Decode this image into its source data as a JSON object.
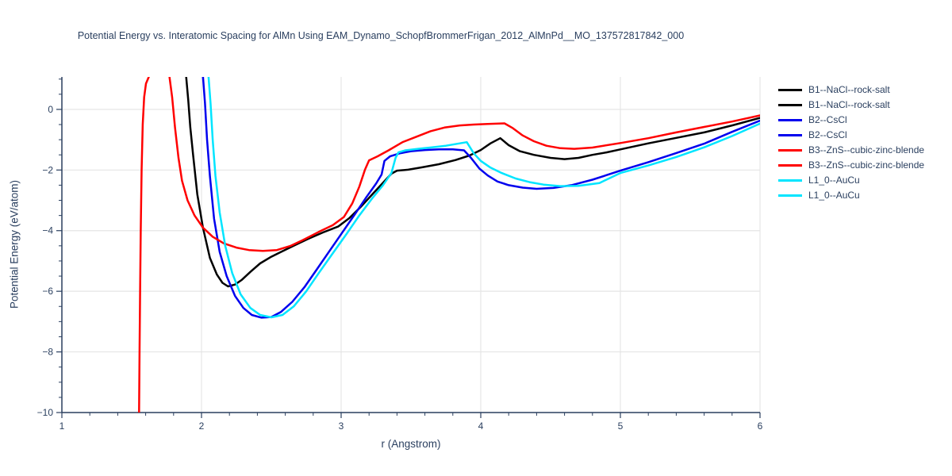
{
  "title": "Potential Energy vs. Interatomic Spacing for AlMn Using EAM_Dynamo_SchopfBrommerFrigan_2012_AlMnPd__MO_137572817842_000",
  "colors": {
    "text": "#2a3f5f",
    "grid": "#e5e5e5",
    "axis_line": "#2a3f5f",
    "background": "#ffffff",
    "series_black": "#000000",
    "series_blue": "#0000ee",
    "series_red": "#ff0000",
    "series_cyan": "#00e5ff"
  },
  "chart_data": {
    "type": "line",
    "title": "Potential Energy vs. Interatomic Spacing for AlMn Using EAM_Dynamo_SchopfBrommerFrigan_2012_AlMnPd__MO_137572817842_000",
    "xlabel": "r (Angstrom)",
    "ylabel": "Potential Energy (eV/atom)",
    "xlim": [
      1,
      6
    ],
    "ylim": [
      -10,
      1.07
    ],
    "grid": true,
    "legend_position": "right",
    "x_ticks": [
      1,
      2,
      3,
      4,
      5,
      6
    ],
    "x_tick_labels": [
      "1",
      "2",
      "3",
      "4",
      "5",
      "6"
    ],
    "y_ticks": [
      0,
      -2,
      -4,
      -6,
      -8,
      -10
    ],
    "y_tick_labels": [
      "0",
      "−2",
      "−4",
      "−6",
      "−8",
      "−10"
    ],
    "x_minor_step": 0.2,
    "y_minor_step": 0.5,
    "legend_entries": [
      {
        "label": "B1--NaCl--rock-salt",
        "color": "#000000",
        "series": 0
      },
      {
        "label": "B1--NaCl--rock-salt",
        "color": "#000000",
        "series": 0
      },
      {
        "label": "B2--CsCl",
        "color": "#0000ee",
        "series": 1
      },
      {
        "label": "B2--CsCl",
        "color": "#0000ee",
        "series": 1
      },
      {
        "label": "B3--ZnS--cubic-zinc-blende",
        "color": "#ff0000",
        "series": 2
      },
      {
        "label": "B3--ZnS--cubic-zinc-blende",
        "color": "#ff0000",
        "series": 2
      },
      {
        "label": "L1_0--AuCu",
        "color": "#00e5ff",
        "series": 3
      },
      {
        "label": "L1_0--AuCu",
        "color": "#00e5ff",
        "series": 3
      }
    ],
    "series": [
      {
        "name": "B1--NaCl--rock-salt",
        "color": "#000000",
        "segments": [
          [
            [
              1.89,
              1.1
            ],
            [
              1.905,
              0.3
            ],
            [
              1.92,
              -0.6
            ],
            [
              1.94,
              -1.5
            ],
            [
              1.97,
              -2.8
            ],
            [
              2.01,
              -3.9
            ],
            [
              2.06,
              -4.9
            ],
            [
              2.11,
              -5.45
            ],
            [
              2.15,
              -5.72
            ],
            [
              2.19,
              -5.84
            ],
            [
              2.24,
              -5.78
            ],
            [
              2.29,
              -5.62
            ],
            [
              2.35,
              -5.36
            ],
            [
              2.42,
              -5.08
            ],
            [
              2.5,
              -4.86
            ],
            [
              2.57,
              -4.7
            ],
            [
              2.66,
              -4.5
            ],
            [
              2.76,
              -4.28
            ],
            [
              2.87,
              -4.06
            ],
            [
              2.98,
              -3.86
            ],
            [
              3.06,
              -3.58
            ],
            [
              3.14,
              -3.22
            ],
            [
              3.22,
              -2.82
            ],
            [
              3.3,
              -2.42
            ],
            [
              3.36,
              -2.12
            ],
            [
              3.4,
              -2.02
            ],
            [
              3.48,
              -1.99
            ],
            [
              3.58,
              -1.91
            ],
            [
              3.7,
              -1.81
            ],
            [
              3.82,
              -1.67
            ],
            [
              3.92,
              -1.52
            ],
            [
              4.0,
              -1.34
            ],
            [
              4.07,
              -1.12
            ],
            [
              4.14,
              -0.95
            ],
            [
              4.2,
              -1.18
            ],
            [
              4.28,
              -1.38
            ],
            [
              4.38,
              -1.5
            ],
            [
              4.5,
              -1.6
            ],
            [
              4.6,
              -1.64
            ],
            [
              4.7,
              -1.6
            ],
            [
              4.8,
              -1.5
            ],
            [
              4.9,
              -1.42
            ],
            [
              5.0,
              -1.32
            ],
            [
              5.2,
              -1.12
            ],
            [
              5.4,
              -0.94
            ],
            [
              5.6,
              -0.76
            ],
            [
              5.8,
              -0.53
            ],
            [
              6.0,
              -0.28
            ]
          ]
        ]
      },
      {
        "name": "B2--CsCl",
        "color": "#0000ee",
        "segments": [
          [
            [
              2.01,
              1.1
            ],
            [
              2.025,
              0.2
            ],
            [
              2.04,
              -1.0
            ],
            [
              2.06,
              -2.2
            ],
            [
              2.09,
              -3.6
            ],
            [
              2.13,
              -4.7
            ],
            [
              2.18,
              -5.5
            ],
            [
              2.24,
              -6.15
            ],
            [
              2.3,
              -6.55
            ],
            [
              2.36,
              -6.78
            ],
            [
              2.43,
              -6.87
            ],
            [
              2.5,
              -6.85
            ],
            [
              2.57,
              -6.68
            ],
            [
              2.65,
              -6.35
            ],
            [
              2.74,
              -5.85
            ],
            [
              2.83,
              -5.25
            ],
            [
              2.92,
              -4.65
            ],
            [
              3.01,
              -4.05
            ],
            [
              3.1,
              -3.45
            ],
            [
              3.18,
              -2.9
            ],
            [
              3.25,
              -2.45
            ],
            [
              3.29,
              -2.15
            ],
            [
              3.31,
              -1.7
            ],
            [
              3.35,
              -1.55
            ],
            [
              3.42,
              -1.45
            ],
            [
              3.5,
              -1.38
            ],
            [
              3.6,
              -1.34
            ],
            [
              3.7,
              -1.32
            ],
            [
              3.8,
              -1.32
            ],
            [
              3.88,
              -1.35
            ],
            [
              3.93,
              -1.6
            ],
            [
              3.99,
              -1.95
            ],
            [
              4.05,
              -2.18
            ],
            [
              4.12,
              -2.38
            ],
            [
              4.2,
              -2.5
            ],
            [
              4.3,
              -2.58
            ],
            [
              4.4,
              -2.62
            ],
            [
              4.52,
              -2.59
            ],
            [
              4.65,
              -2.5
            ],
            [
              4.8,
              -2.32
            ],
            [
              5.0,
              -2.02
            ],
            [
              5.2,
              -1.74
            ],
            [
              5.4,
              -1.44
            ],
            [
              5.6,
              -1.13
            ],
            [
              5.8,
              -0.74
            ],
            [
              6.0,
              -0.37
            ]
          ]
        ]
      },
      {
        "name": "B3--ZnS--cubic-zinc-blende",
        "color": "#ff0000",
        "segments": [
          [
            [
              1.553,
              -10
            ],
            [
              1.556,
              -8.0
            ],
            [
              1.56,
              -6.0
            ],
            [
              1.565,
              -4.0
            ],
            [
              1.571,
              -2.0
            ],
            [
              1.579,
              -0.5
            ],
            [
              1.589,
              0.4
            ],
            [
              1.602,
              0.85
            ],
            [
              1.625,
              1.1
            ]
          ],
          [
            [
              1.77,
              1.1
            ],
            [
              1.79,
              0.4
            ],
            [
              1.81,
              -0.6
            ],
            [
              1.835,
              -1.6
            ],
            [
              1.86,
              -2.35
            ],
            [
              1.9,
              -3.0
            ],
            [
              1.95,
              -3.5
            ],
            [
              2.01,
              -3.9
            ],
            [
              2.08,
              -4.2
            ],
            [
              2.16,
              -4.42
            ],
            [
              2.25,
              -4.56
            ],
            [
              2.34,
              -4.64
            ],
            [
              2.44,
              -4.67
            ],
            [
              2.54,
              -4.64
            ],
            [
              2.64,
              -4.5
            ],
            [
              2.74,
              -4.28
            ],
            [
              2.84,
              -4.04
            ],
            [
              2.94,
              -3.82
            ],
            [
              3.02,
              -3.55
            ],
            [
              3.08,
              -3.1
            ],
            [
              3.13,
              -2.55
            ],
            [
              3.17,
              -2.0
            ],
            [
              3.2,
              -1.68
            ],
            [
              3.26,
              -1.55
            ],
            [
              3.34,
              -1.35
            ],
            [
              3.44,
              -1.08
            ],
            [
              3.54,
              -0.9
            ],
            [
              3.64,
              -0.72
            ],
            [
              3.74,
              -0.6
            ],
            [
              3.85,
              -0.53
            ],
            [
              3.95,
              -0.5
            ],
            [
              4.05,
              -0.48
            ],
            [
              4.17,
              -0.46
            ],
            [
              4.23,
              -0.62
            ],
            [
              4.3,
              -0.86
            ],
            [
              4.38,
              -1.05
            ],
            [
              4.47,
              -1.2
            ],
            [
              4.57,
              -1.28
            ],
            [
              4.67,
              -1.3
            ],
            [
              4.8,
              -1.26
            ],
            [
              5.0,
              -1.11
            ],
            [
              5.2,
              -0.95
            ],
            [
              5.4,
              -0.76
            ],
            [
              5.6,
              -0.58
            ],
            [
              5.8,
              -0.4
            ],
            [
              6.0,
              -0.2
            ]
          ]
        ]
      },
      {
        "name": "L1_0--AuCu",
        "color": "#00e5ff",
        "segments": [
          [
            [
              2.05,
              1.1
            ],
            [
              2.065,
              0.2
            ],
            [
              2.08,
              -1.0
            ],
            [
              2.1,
              -2.2
            ],
            [
              2.13,
              -3.4
            ],
            [
              2.17,
              -4.5
            ],
            [
              2.22,
              -5.4
            ],
            [
              2.28,
              -6.1
            ],
            [
              2.35,
              -6.55
            ],
            [
              2.42,
              -6.78
            ],
            [
              2.5,
              -6.86
            ],
            [
              2.58,
              -6.78
            ],
            [
              2.66,
              -6.5
            ],
            [
              2.75,
              -6.0
            ],
            [
              2.84,
              -5.4
            ],
            [
              2.94,
              -4.75
            ],
            [
              3.04,
              -4.1
            ],
            [
              3.13,
              -3.5
            ],
            [
              3.22,
              -2.95
            ],
            [
              3.3,
              -2.5
            ],
            [
              3.36,
              -2.1
            ],
            [
              3.39,
              -1.6
            ],
            [
              3.41,
              -1.42
            ],
            [
              3.46,
              -1.35
            ],
            [
              3.55,
              -1.3
            ],
            [
              3.65,
              -1.25
            ],
            [
              3.75,
              -1.2
            ],
            [
              3.85,
              -1.12
            ],
            [
              3.9,
              -1.08
            ],
            [
              3.95,
              -1.45
            ],
            [
              4.0,
              -1.7
            ],
            [
              4.07,
              -1.92
            ],
            [
              4.15,
              -2.1
            ],
            [
              4.25,
              -2.28
            ],
            [
              4.35,
              -2.4
            ],
            [
              4.45,
              -2.48
            ],
            [
              4.57,
              -2.53
            ],
            [
              4.7,
              -2.52
            ],
            [
              4.85,
              -2.43
            ],
            [
              5.0,
              -2.1
            ],
            [
              5.2,
              -1.85
            ],
            [
              5.4,
              -1.57
            ],
            [
              5.6,
              -1.25
            ],
            [
              5.8,
              -0.88
            ],
            [
              6.0,
              -0.47
            ]
          ]
        ]
      }
    ]
  }
}
